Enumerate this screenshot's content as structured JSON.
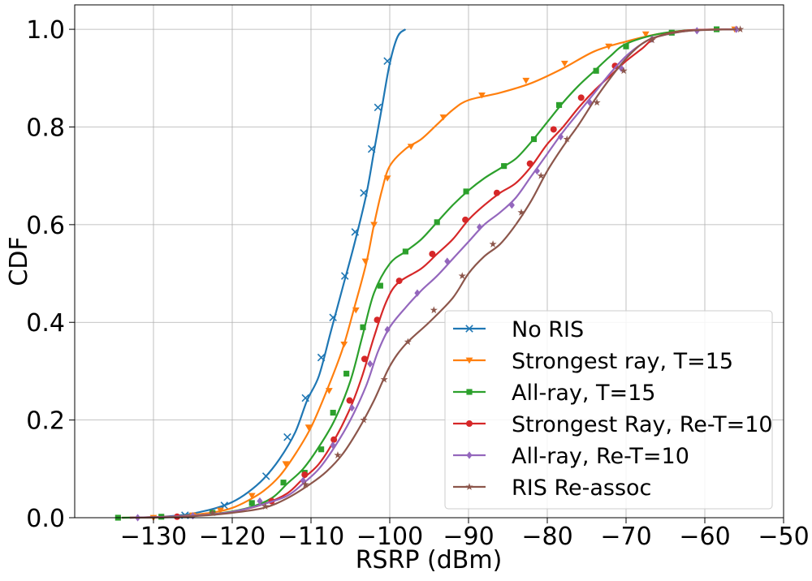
{
  "chart_data": {
    "type": "line",
    "title": "",
    "xlabel": "RSRP (dBm)",
    "ylabel": "CDF",
    "xlim": [
      -140,
      -50
    ],
    "ylim": [
      0,
      1.05
    ],
    "xticks": [
      -130,
      -120,
      -110,
      -100,
      -90,
      -80,
      -70,
      -60,
      -50
    ],
    "xtick_labels": [
      "−130",
      "−120",
      "−110",
      "−100",
      "−90",
      "−80",
      "−70",
      "−60",
      "−50"
    ],
    "yticks": [
      0,
      0.2,
      0.4,
      0.6,
      0.8,
      1.0
    ],
    "ytick_labels": [
      "0.0",
      "0.2",
      "0.4",
      "0.6",
      "0.8",
      "1.0"
    ],
    "grid": true,
    "legend_position": "lower-right",
    "series": [
      {
        "name": "No RIS",
        "color": "#1f77b4",
        "marker": "x",
        "points": [
          [
            -132,
            0
          ],
          [
            -130,
            0.001
          ],
          [
            -128,
            0.003
          ],
          [
            -126,
            0.006
          ],
          [
            -124,
            0.012
          ],
          [
            -122,
            0.02
          ],
          [
            -120,
            0.032
          ],
          [
            -118,
            0.052
          ],
          [
            -116,
            0.08
          ],
          [
            -114,
            0.12
          ],
          [
            -112,
            0.175
          ],
          [
            -110.5,
            0.24
          ],
          [
            -109,
            0.29
          ],
          [
            -107.5,
            0.38
          ],
          [
            -106,
            0.47
          ],
          [
            -104.5,
            0.56
          ],
          [
            -103,
            0.66
          ],
          [
            -102,
            0.75
          ],
          [
            -101,
            0.84
          ],
          [
            -100,
            0.93
          ],
          [
            -99,
            0.985
          ],
          [
            -98,
            1.0
          ]
        ],
        "markers": [
          [
            -126,
            0.005
          ],
          [
            -121,
            0.025
          ],
          [
            -115.7,
            0.085
          ],
          [
            -113,
            0.165
          ],
          [
            -110.7,
            0.245
          ],
          [
            -108.7,
            0.328
          ],
          [
            -107.2,
            0.41
          ],
          [
            -105.7,
            0.495
          ],
          [
            -104.4,
            0.585
          ],
          [
            -103.3,
            0.665
          ],
          [
            -102.3,
            0.755
          ],
          [
            -101.5,
            0.84
          ],
          [
            -100.3,
            0.935
          ]
        ]
      },
      {
        "name": "Strongest ray, T=15",
        "color": "#ff7f0e",
        "marker": "v",
        "points": [
          [
            -134,
            0
          ],
          [
            -130,
            0.001
          ],
          [
            -126,
            0.004
          ],
          [
            -122,
            0.012
          ],
          [
            -120,
            0.02
          ],
          [
            -118,
            0.035
          ],
          [
            -116,
            0.055
          ],
          [
            -114,
            0.085
          ],
          [
            -112,
            0.13
          ],
          [
            -110,
            0.185
          ],
          [
            -108,
            0.26
          ],
          [
            -106,
            0.345
          ],
          [
            -104.5,
            0.43
          ],
          [
            -103,
            0.52
          ],
          [
            -102,
            0.6
          ],
          [
            -101,
            0.67
          ],
          [
            -100,
            0.72
          ],
          [
            -98,
            0.755
          ],
          [
            -96,
            0.775
          ],
          [
            -94,
            0.805
          ],
          [
            -92,
            0.835
          ],
          [
            -90,
            0.855
          ],
          [
            -86,
            0.87
          ],
          [
            -82,
            0.89
          ],
          [
            -78,
            0.92
          ],
          [
            -74,
            0.955
          ],
          [
            -70,
            0.975
          ],
          [
            -66,
            0.99
          ],
          [
            -62,
            0.998
          ],
          [
            -56,
            1.0
          ]
        ],
        "markers": [
          [
            -130,
            0
          ],
          [
            -125,
            0.005
          ],
          [
            -121.5,
            0.015
          ],
          [
            -117.5,
            0.045
          ],
          [
            -113.2,
            0.11
          ],
          [
            -110.3,
            0.185
          ],
          [
            -107.7,
            0.26
          ],
          [
            -105.8,
            0.355
          ],
          [
            -104.3,
            0.425
          ],
          [
            -103.1,
            0.525
          ],
          [
            -102,
            0.6
          ],
          [
            -100.3,
            0.695
          ],
          [
            -97.3,
            0.76
          ],
          [
            -93.2,
            0.82
          ],
          [
            -88.3,
            0.865
          ],
          [
            -82.7,
            0.895
          ],
          [
            -77.8,
            0.93
          ],
          [
            -72.2,
            0.965
          ],
          [
            -67.5,
            0.99
          ],
          [
            -56.2,
            1.0
          ]
        ]
      },
      {
        "name": "All-ray, T=15",
        "color": "#2ca02c",
        "marker": "s",
        "points": [
          [
            -134,
            0
          ],
          [
            -130,
            0.001
          ],
          [
            -126,
            0.003
          ],
          [
            -122,
            0.008
          ],
          [
            -118,
            0.02
          ],
          [
            -115,
            0.04
          ],
          [
            -113,
            0.07
          ],
          [
            -111,
            0.1
          ],
          [
            -109,
            0.145
          ],
          [
            -107,
            0.2
          ],
          [
            -105,
            0.28
          ],
          [
            -103.5,
            0.37
          ],
          [
            -102,
            0.46
          ],
          [
            -100,
            0.52
          ],
          [
            -98,
            0.545
          ],
          [
            -96,
            0.57
          ],
          [
            -94,
            0.605
          ],
          [
            -92,
            0.64
          ],
          [
            -90,
            0.67
          ],
          [
            -88,
            0.695
          ],
          [
            -86,
            0.715
          ],
          [
            -84,
            0.735
          ],
          [
            -82,
            0.77
          ],
          [
            -80,
            0.81
          ],
          [
            -78,
            0.85
          ],
          [
            -76,
            0.885
          ],
          [
            -74,
            0.915
          ],
          [
            -72,
            0.945
          ],
          [
            -70,
            0.97
          ],
          [
            -66,
            0.99
          ],
          [
            -62,
            0.998
          ],
          [
            -56,
            1.0
          ]
        ],
        "markers": [
          [
            -134.5,
            0
          ],
          [
            -129,
            0.002
          ],
          [
            -122.5,
            0.01
          ],
          [
            -117.5,
            0.03
          ],
          [
            -113.5,
            0.072
          ],
          [
            -110.8,
            0.092
          ],
          [
            -108.7,
            0.14
          ],
          [
            -107.2,
            0.215
          ],
          [
            -105.5,
            0.295
          ],
          [
            -103.4,
            0.39
          ],
          [
            -101.2,
            0.475
          ],
          [
            -98,
            0.545
          ],
          [
            -94,
            0.605
          ],
          [
            -90.3,
            0.668
          ],
          [
            -85.5,
            0.72
          ],
          [
            -81.7,
            0.775
          ],
          [
            -78.5,
            0.845
          ],
          [
            -73.8,
            0.915
          ],
          [
            -70,
            0.965
          ],
          [
            -64.2,
            0.993
          ],
          [
            -58.5,
            1.0
          ]
        ]
      },
      {
        "name": "Strongest Ray, Re-T=10",
        "color": "#d62728",
        "marker": "o",
        "points": [
          [
            -133,
            0
          ],
          [
            -128,
            0.002
          ],
          [
            -124,
            0.005
          ],
          [
            -120,
            0.012
          ],
          [
            -116,
            0.028
          ],
          [
            -113,
            0.05
          ],
          [
            -111,
            0.08
          ],
          [
            -109,
            0.11
          ],
          [
            -107,
            0.16
          ],
          [
            -105,
            0.225
          ],
          [
            -103.5,
            0.29
          ],
          [
            -102,
            0.37
          ],
          [
            -100.5,
            0.44
          ],
          [
            -99,
            0.48
          ],
          [
            -96,
            0.51
          ],
          [
            -94,
            0.54
          ],
          [
            -92,
            0.57
          ],
          [
            -90,
            0.61
          ],
          [
            -88,
            0.64
          ],
          [
            -86,
            0.665
          ],
          [
            -84,
            0.685
          ],
          [
            -82,
            0.72
          ],
          [
            -80,
            0.765
          ],
          [
            -78,
            0.8
          ],
          [
            -76,
            0.84
          ],
          [
            -74,
            0.875
          ],
          [
            -72,
            0.905
          ],
          [
            -70,
            0.935
          ],
          [
            -68,
            0.96
          ],
          [
            -66,
            0.985
          ],
          [
            -62,
            0.998
          ],
          [
            -56,
            1.0
          ]
        ],
        "markers": [
          [
            -127,
            0.002
          ],
          [
            -115,
            0.034
          ],
          [
            -110.8,
            0.088
          ],
          [
            -107.1,
            0.16
          ],
          [
            -105.1,
            0.24
          ],
          [
            -103.2,
            0.325
          ],
          [
            -101.6,
            0.405
          ],
          [
            -98.8,
            0.485
          ],
          [
            -94.6,
            0.54
          ],
          [
            -90.4,
            0.61
          ],
          [
            -86.4,
            0.665
          ],
          [
            -82.2,
            0.725
          ],
          [
            -79.2,
            0.795
          ],
          [
            -75.7,
            0.86
          ],
          [
            -71.4,
            0.925
          ]
        ]
      },
      {
        "name": "All-ray, Re-T=10",
        "color": "#9467bd",
        "marker": "D",
        "points": [
          [
            -133,
            0
          ],
          [
            -128,
            0.002
          ],
          [
            -124,
            0.005
          ],
          [
            -120,
            0.012
          ],
          [
            -116,
            0.028
          ],
          [
            -113,
            0.045
          ],
          [
            -111,
            0.07
          ],
          [
            -109,
            0.1
          ],
          [
            -107,
            0.145
          ],
          [
            -105,
            0.2
          ],
          [
            -103,
            0.27
          ],
          [
            -101.5,
            0.34
          ],
          [
            -100,
            0.39
          ],
          [
            -98,
            0.43
          ],
          [
            -96,
            0.465
          ],
          [
            -94,
            0.495
          ],
          [
            -92,
            0.53
          ],
          [
            -90,
            0.565
          ],
          [
            -88,
            0.6
          ],
          [
            -86,
            0.625
          ],
          [
            -84,
            0.655
          ],
          [
            -82,
            0.7
          ],
          [
            -80,
            0.745
          ],
          [
            -78,
            0.79
          ],
          [
            -76,
            0.83
          ],
          [
            -74,
            0.87
          ],
          [
            -72,
            0.91
          ],
          [
            -70,
            0.945
          ],
          [
            -68,
            0.97
          ],
          [
            -66,
            0.985
          ],
          [
            -62,
            0.997
          ],
          [
            -56,
            1.0
          ]
        ],
        "markers": [
          [
            -132,
            0
          ],
          [
            -125,
            0.004
          ],
          [
            -116.5,
            0.034
          ],
          [
            -111,
            0.076
          ],
          [
            -107.2,
            0.148
          ],
          [
            -104.8,
            0.225
          ],
          [
            -102.5,
            0.315
          ],
          [
            -100.3,
            0.385
          ],
          [
            -96.5,
            0.46
          ],
          [
            -92.7,
            0.525
          ],
          [
            -88.6,
            0.595
          ],
          [
            -84.5,
            0.64
          ],
          [
            -81.3,
            0.71
          ],
          [
            -78.3,
            0.78
          ],
          [
            -74.6,
            0.85
          ],
          [
            -70.6,
            0.92
          ],
          [
            -66.7,
            0.98
          ],
          [
            -61,
            0.997
          ],
          [
            -56,
            1.0
          ]
        ]
      },
      {
        "name": "RIS Re-assoc",
        "color": "#8c564b",
        "marker": "*",
        "points": [
          [
            -133,
            0
          ],
          [
            -128,
            0.001
          ],
          [
            -124,
            0.004
          ],
          [
            -120,
            0.01
          ],
          [
            -116,
            0.02
          ],
          [
            -113,
            0.04
          ],
          [
            -110,
            0.07
          ],
          [
            -108,
            0.095
          ],
          [
            -106,
            0.13
          ],
          [
            -104,
            0.18
          ],
          [
            -102,
            0.24
          ],
          [
            -100,
            0.31
          ],
          [
            -98,
            0.355
          ],
          [
            -95,
            0.4
          ],
          [
            -92,
            0.45
          ],
          [
            -90,
            0.5
          ],
          [
            -88,
            0.535
          ],
          [
            -86,
            0.56
          ],
          [
            -84,
            0.6
          ],
          [
            -82,
            0.65
          ],
          [
            -80,
            0.71
          ],
          [
            -78,
            0.76
          ],
          [
            -76,
            0.805
          ],
          [
            -74,
            0.855
          ],
          [
            -72,
            0.9
          ],
          [
            -70,
            0.94
          ],
          [
            -68,
            0.97
          ],
          [
            -66,
            0.985
          ],
          [
            -62,
            0.997
          ],
          [
            -56,
            1.0
          ]
        ],
        "markers": [
          [
            -122.5,
            0.01
          ],
          [
            -115.8,
            0.023
          ],
          [
            -110.7,
            0.068
          ],
          [
            -106.6,
            0.128
          ],
          [
            -103.3,
            0.2
          ],
          [
            -100.7,
            0.283
          ],
          [
            -97.7,
            0.36
          ],
          [
            -94.4,
            0.425
          ],
          [
            -90.8,
            0.495
          ],
          [
            -86.9,
            0.56
          ],
          [
            -83.3,
            0.625
          ],
          [
            -80.8,
            0.7
          ],
          [
            -77.5,
            0.775
          ],
          [
            -73.7,
            0.85
          ],
          [
            -70.3,
            0.915
          ],
          [
            -66.7,
            0.978
          ],
          [
            -55.5,
            1.0
          ]
        ]
      }
    ]
  }
}
